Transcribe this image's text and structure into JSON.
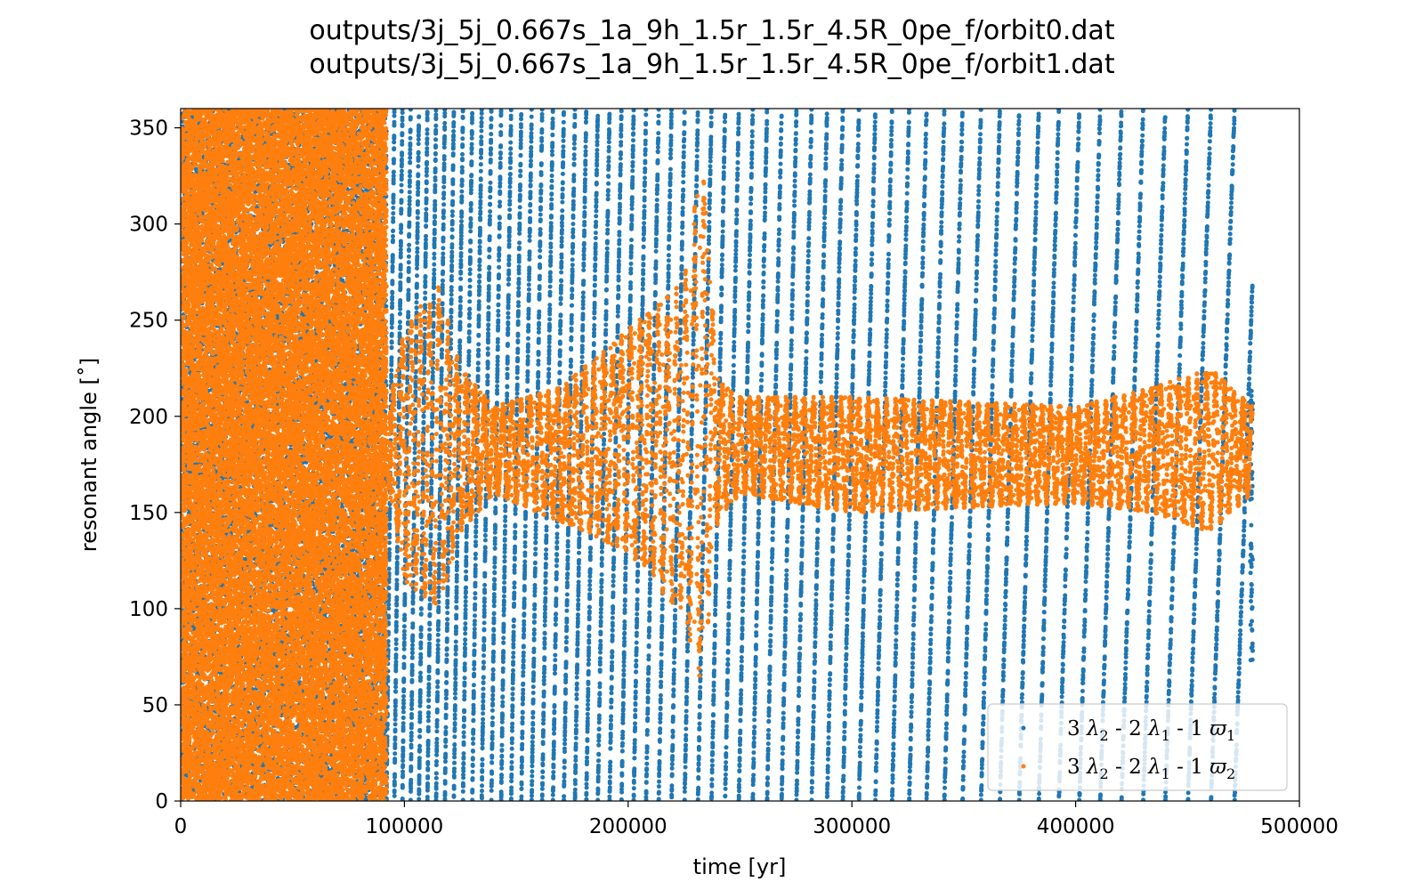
{
  "titles": [
    "outputs/3j_5j_0.667s_1a_9h_1.5r_1.5r_4.5R_0pe_f/orbit0.dat",
    "outputs/3j_5j_0.667s_1a_9h_1.5r_1.5r_4.5R_0pe_f/orbit1.dat"
  ],
  "chart_data": {
    "type": "scatter",
    "title": "outputs/3j_5j_0.667s_1a_9h_1.5r_1.5r_4.5R_0pe_f/orbit0.dat\noutputs/3j_5j_0.667s_1a_9h_1.5r_1.5r_4.5R_0pe_f/orbit1.dat",
    "xlabel": "time [yr]",
    "ylabel": "resonant angle [˚]",
    "xlim": [
      0,
      500000
    ],
    "ylim": [
      0,
      360
    ],
    "xticks": [
      0,
      100000,
      200000,
      300000,
      400000,
      500000
    ],
    "yticks": [
      0,
      50,
      100,
      150,
      200,
      250,
      300,
      350
    ],
    "grid": false,
    "legend_position": "lower right",
    "series": [
      {
        "name": "3 λ2 - 2 λ1 - 1 ϖ1",
        "legend_parts": [
          "3 ",
          "λ",
          "2",
          " - 2 ",
          "λ",
          "1",
          " - 1 ",
          "ϖ",
          "1"
        ],
        "color": "#1f77b4",
        "behavior": "circulating over 0–360° for the full run, period shortening from ~3700 yr to ~13000 yr cycles",
        "x_range": [
          0,
          479000
        ],
        "y_range": [
          0,
          360
        ]
      },
      {
        "name": "3 λ2 - 2 λ1 - 1 ϖ2",
        "legend_parts": [
          "3 ",
          "λ",
          "2",
          " - 2 ",
          "λ",
          "1",
          " - 1 ",
          "ϖ",
          "2"
        ],
        "color": "#ff7f0e",
        "behavior": "circulating until ~92000 yr, then librating about 180°",
        "envelope": {
          "x": [
            92000,
            100000,
            115000,
            125000,
            140000,
            170000,
            200000,
            225000,
            233000,
            240000,
            250000,
            300000,
            400000,
            435000,
            460000,
            479000
          ],
          "upper": [
            200,
            245,
            270,
            225,
            205,
            215,
            245,
            270,
            335,
            220,
            210,
            210,
            205,
            215,
            225,
            205
          ],
          "lower": [
            170,
            115,
            100,
            140,
            160,
            145,
            130,
            95,
            60,
            145,
            160,
            150,
            155,
            150,
            140,
            160
          ]
        }
      }
    ]
  }
}
